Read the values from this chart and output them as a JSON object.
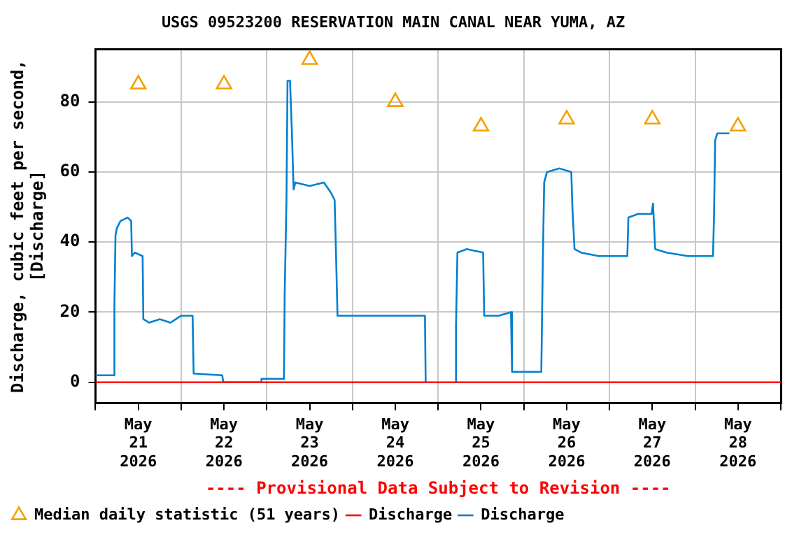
{
  "chart_data": {
    "type": "line",
    "title": "USGS 09523200 RESERVATION MAIN CANAL NEAR YUMA, AZ",
    "ylabel": "Discharge, cubic feet per second,\n[Discharge]",
    "annotations": [
      "---- Provisional Data Subject to Revision ----"
    ],
    "xlim": [
      "2026-05-21T00:00",
      "2026-05-29T00:00"
    ],
    "xticks": [
      {
        "value": "2026-05-21T00:00",
        "label": null
      },
      {
        "value": "2026-05-21T12:00",
        "label": "May\n21\n2026"
      },
      {
        "value": "2026-05-22T00:00",
        "label": null
      },
      {
        "value": "2026-05-22T12:00",
        "label": "May\n22\n2026"
      },
      {
        "value": "2026-05-23T00:00",
        "label": null
      },
      {
        "value": "2026-05-23T12:00",
        "label": "May\n23\n2026"
      },
      {
        "value": "2026-05-24T00:00",
        "label": null
      },
      {
        "value": "2026-05-24T12:00",
        "label": "May\n24\n2026"
      },
      {
        "value": "2026-05-25T00:00",
        "label": null
      },
      {
        "value": "2026-05-25T12:00",
        "label": "May\n25\n2026"
      },
      {
        "value": "2026-05-26T00:00",
        "label": null
      },
      {
        "value": "2026-05-26T12:00",
        "label": "May\n26\n2026"
      },
      {
        "value": "2026-05-27T00:00",
        "label": null
      },
      {
        "value": "2026-05-27T12:00",
        "label": "May\n27\n2026"
      },
      {
        "value": "2026-05-28T00:00",
        "label": null
      },
      {
        "value": "2026-05-28T12:00",
        "label": "May\n28\n2026"
      },
      {
        "value": "2026-05-29T00:00",
        "label": null
      }
    ],
    "ylim": [
      -6,
      95
    ],
    "yticks": [
      0,
      20,
      40,
      60,
      80
    ],
    "grid": true,
    "legend": "bottom",
    "series": [
      {
        "name": "Median daily statistic (51 years)",
        "type": "scatter",
        "marker": "triangle",
        "color": "#f5a000",
        "x": [
          "2026-05-21T12:00",
          "2026-05-22T12:00",
          "2026-05-23T12:00",
          "2026-05-24T12:00",
          "2026-05-25T12:00",
          "2026-05-26T12:00",
          "2026-05-27T12:00",
          "2026-05-28T12:00"
        ],
        "values": [
          85,
          85,
          92,
          80,
          73,
          75,
          75,
          73
        ]
      },
      {
        "name": "Discharge",
        "color": "#ff0000",
        "x": [
          "2026-05-21T00:00",
          "2026-05-29T00:00"
        ],
        "values": [
          0,
          0
        ]
      },
      {
        "name": "Discharge",
        "color": "#0080d0",
        "x": [
          "2026-05-21T00:00",
          "2026-05-21T05:00",
          "2026-05-21T05:18",
          "2026-05-21T05:36",
          "2026-05-21T06:00",
          "2026-05-21T07:00",
          "2026-05-21T09:00",
          "2026-05-21T10:00",
          "2026-05-21T10:12",
          "2026-05-21T11:00",
          "2026-05-21T13:12",
          "2026-05-21T13:24",
          "2026-05-21T15:00",
          "2026-05-21T18:00",
          "2026-05-21T21:00",
          "2026-05-22T00:00",
          "2026-05-22T03:12",
          "2026-05-22T03:30",
          "2026-05-22T11:30",
          "2026-05-22T11:48",
          "2026-05-22T22:18",
          "2026-05-22T22:30",
          "2026-05-23T04:48",
          "2026-05-23T05:00",
          "2026-05-23T05:30",
          "2026-05-23T05:48",
          "2026-05-23T06:30",
          "2026-05-23T07:00",
          "2026-05-23T07:30",
          "2026-05-23T08:00",
          "2026-05-23T12:00",
          "2026-05-23T16:00",
          "2026-05-23T18:00",
          "2026-05-23T19:00",
          "2026-05-23T19:24",
          "2026-05-23T19:48",
          "2026-05-24T08:00",
          "2026-05-24T20:18",
          "2026-05-24T20:30",
          "2026-05-24T22:00",
          "2026-05-25T04:48",
          "2026-05-25T05:00",
          "2026-05-25T05:24",
          "2026-05-25T08:00",
          "2026-05-25T12:36",
          "2026-05-25T12:54",
          "2026-05-25T17:00",
          "2026-05-25T20:24",
          "2026-05-25T20:42",
          "2026-05-26T04:54",
          "2026-05-26T05:18",
          "2026-05-26T05:42",
          "2026-05-26T06:30",
          "2026-05-26T10:00",
          "2026-05-26T13:18",
          "2026-05-26T13:36",
          "2026-05-26T14:12",
          "2026-05-26T16:00",
          "2026-05-26T21:00",
          "2026-05-27T05:00",
          "2026-05-27T05:18",
          "2026-05-27T08:00",
          "2026-05-27T11:48",
          "2026-05-27T12:12",
          "2026-05-27T12:48",
          "2026-05-27T16:00",
          "2026-05-27T22:00",
          "2026-05-28T05:00",
          "2026-05-28T05:18",
          "2026-05-28T05:36",
          "2026-05-28T06:12",
          "2026-05-28T09:36"
        ],
        "values": [
          2,
          2,
          22,
          42,
          44,
          46,
          47,
          46,
          36,
          37,
          36,
          18,
          17,
          18,
          17,
          19,
          19,
          2.5,
          2,
          0,
          0,
          1,
          1,
          25,
          52,
          86,
          86,
          72,
          55,
          57,
          56,
          57,
          54,
          52,
          36,
          19,
          19,
          19,
          0,
          null,
          0,
          16,
          37,
          38,
          37,
          19,
          19,
          20,
          3,
          3,
          33,
          57,
          60,
          61,
          60,
          50,
          38,
          37,
          36,
          36,
          47,
          48,
          48,
          51,
          38,
          37,
          36,
          36,
          48,
          69,
          71,
          71
        ]
      }
    ]
  }
}
